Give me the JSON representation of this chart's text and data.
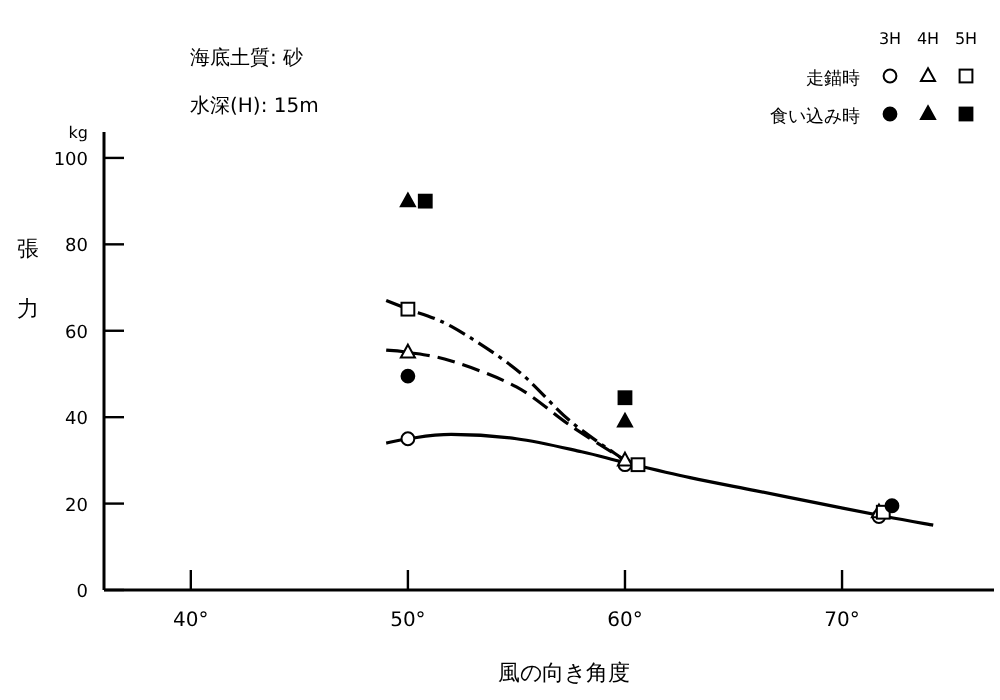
{
  "chart_data": {
    "type": "scatter",
    "title": "海底土質: 砂",
    "subtitle": "水深(H): 15m",
    "xlabel": "風の向き角度",
    "ylabel": "張力",
    "annotations": [
      "kg",
      "3H",
      "4H",
      "5H",
      "走錨時",
      "食い込み時"
    ],
    "xlim": [
      36,
      77
    ],
    "ylim": [
      0,
      106
    ],
    "xticks": [
      {
        "value": 40,
        "label": "40°"
      },
      {
        "value": 50,
        "label": "50°"
      },
      {
        "value": 60,
        "label": "60°"
      },
      {
        "value": 70,
        "label": "70°"
      }
    ],
    "yticks": [
      0,
      20,
      40,
      60,
      80,
      100
    ],
    "grid": false,
    "series": [
      {
        "type": "line",
        "line_style": "solid",
        "color": "#000000",
        "x": [
          49,
          50,
          52,
          55,
          58,
          60,
          63,
          66,
          69,
          72,
          74.2
        ],
        "values": [
          34,
          35,
          36,
          35,
          32,
          29.5,
          26,
          23,
          20,
          17,
          15
        ]
      },
      {
        "type": "line",
        "line_style": "dashed",
        "color": "#000000",
        "x": [
          49,
          50,
          52,
          55,
          57.5,
          60
        ],
        "values": [
          55.5,
          55,
          53,
          47,
          38,
          30
        ]
      },
      {
        "type": "line",
        "line_style": "dotted",
        "color": "#000000",
        "x": [
          49,
          50,
          52,
          55,
          57.5,
          60
        ],
        "values": [
          67,
          65,
          61,
          51,
          39,
          30
        ]
      },
      {
        "type": "scatter",
        "marker": "circle",
        "color": "#ffffff",
        "x": [
          50,
          60,
          71.7
        ],
        "values": [
          35,
          29,
          17
        ]
      },
      {
        "type": "scatter",
        "marker": "triangle",
        "color": "#ffffff",
        "x": [
          50,
          60,
          71.7
        ],
        "values": [
          55,
          30,
          18
        ]
      },
      {
        "type": "scatter",
        "marker": "square",
        "color": "#ffffff",
        "x": [
          50,
          60.6,
          71.9
        ],
        "values": [
          65,
          29,
          18
        ]
      },
      {
        "type": "scatter",
        "marker": "circle",
        "color": "#000000",
        "x": [
          50,
          72.3
        ],
        "values": [
          49.5,
          19.5
        ]
      },
      {
        "type": "scatter",
        "marker": "triangle",
        "color": "#000000",
        "x": [
          50,
          60
        ],
        "values": [
          90,
          39
        ]
      },
      {
        "type": "scatter",
        "marker": "square",
        "color": "#000000",
        "x": [
          50.8,
          60
        ],
        "values": [
          90,
          44.5
        ]
      }
    ]
  }
}
